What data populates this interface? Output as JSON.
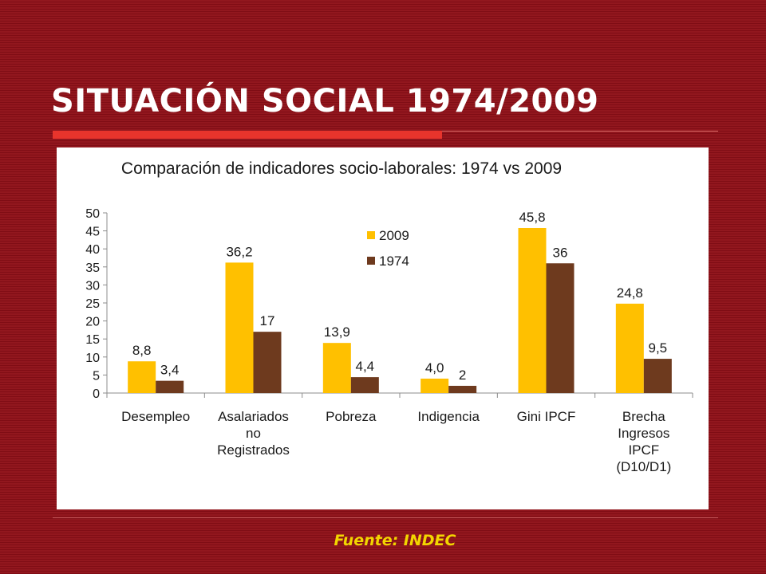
{
  "slide": {
    "title": "SITUACIÓN SOCIAL 1974/2009",
    "source": "Fuente: INDEC"
  },
  "colors": {
    "background": "#8e0f17",
    "accent_bar": "#e8342c",
    "series_2009": "#ffc000",
    "series_1974": "#6e3a1e",
    "source_text": "#f2d600"
  },
  "chart_data": {
    "type": "bar",
    "title": "Comparación de indicadores socio-laborales: 1974 vs 2009",
    "categories": [
      [
        "Desempleo"
      ],
      [
        "Asalariados",
        "no",
        "Registrados"
      ],
      [
        "Pobreza"
      ],
      [
        "Indigencia"
      ],
      [
        "Gini IPCF"
      ],
      [
        "Brecha",
        "Ingresos",
        "IPCF",
        "(D10/D1)"
      ]
    ],
    "series": [
      {
        "name": "2009",
        "values": [
          8.8,
          36.2,
          13.9,
          4.0,
          45.8,
          24.8
        ],
        "labels": [
          "8,8",
          "36,2",
          "13,9",
          "4,0",
          "45,8",
          "24,8"
        ],
        "color": "#ffc000"
      },
      {
        "name": "1974",
        "values": [
          3.4,
          17,
          4.4,
          2,
          36,
          9.5
        ],
        "labels": [
          "3,4",
          "17",
          "4,4",
          "2",
          "36",
          "9,5"
        ],
        "color": "#6e3a1e"
      }
    ],
    "ylim": [
      0,
      50
    ],
    "yticks": [
      0,
      5,
      10,
      15,
      20,
      25,
      30,
      35,
      40,
      45,
      50
    ],
    "xlabel": "",
    "ylabel": "",
    "grid": false,
    "legend_position": "top-center"
  }
}
